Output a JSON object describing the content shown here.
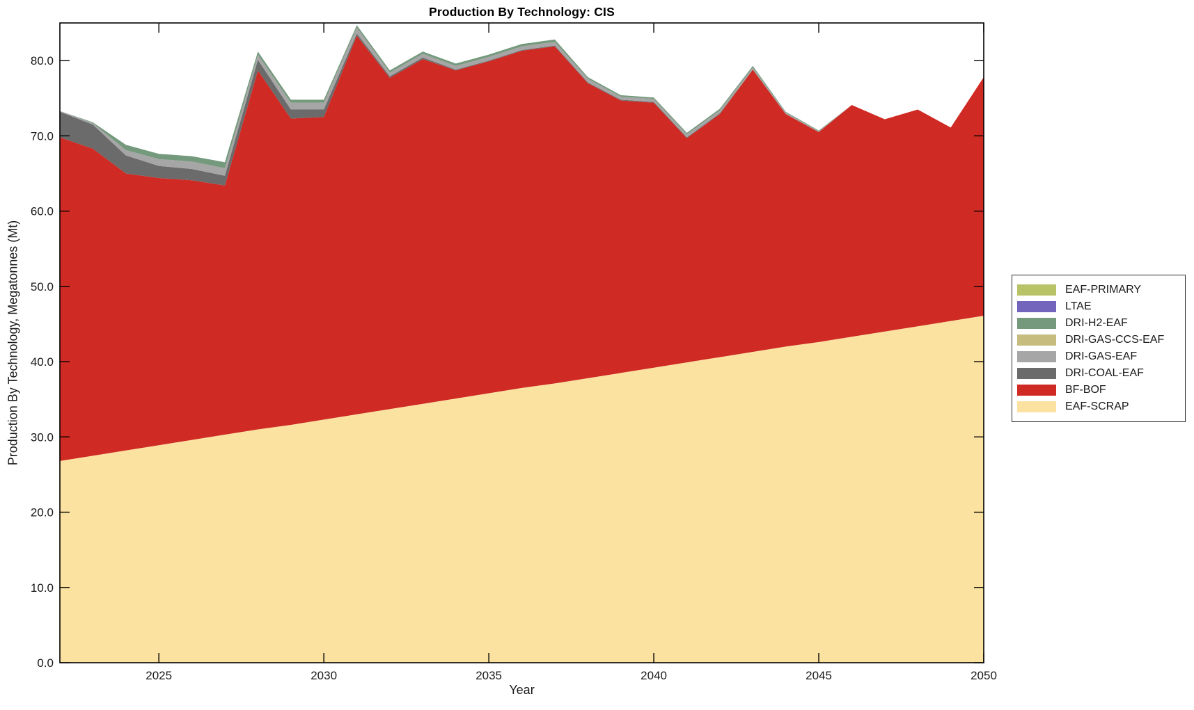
{
  "chart": {
    "title": "Production By Technology: CIS",
    "xlabel": "Year",
    "ylabel": "Production By Technology, Megatonnes (Mt)"
  },
  "chart_data": {
    "type": "area",
    "stacked": true,
    "title": "Production By Technology: CIS",
    "xlabel": "Year",
    "ylabel": "Production By Technology, Megatonnes (Mt)",
    "x": [
      2022,
      2023,
      2024,
      2025,
      2026,
      2027,
      2028,
      2029,
      2030,
      2031,
      2032,
      2033,
      2034,
      2035,
      2036,
      2037,
      2038,
      2039,
      2040,
      2041,
      2042,
      2043,
      2044,
      2045,
      2046,
      2047,
      2048,
      2049,
      2050
    ],
    "series": [
      {
        "name": "EAF-SCRAP",
        "color": "#fce2a1",
        "values": [
          26.8,
          27.5,
          28.2,
          28.9,
          29.6,
          30.3,
          31.0,
          31.6,
          32.3,
          33.0,
          33.7,
          34.4,
          35.1,
          35.8,
          36.5,
          37.1,
          37.8,
          38.5,
          39.2,
          39.9,
          40.6,
          41.3,
          42.0,
          42.6,
          43.3,
          44.0,
          44.7,
          45.4,
          46.1
        ]
      },
      {
        "name": "BF-BOF",
        "color": "#cf2a24",
        "values": [
          43.0,
          40.8,
          36.8,
          35.5,
          34.5,
          33.1,
          47.7,
          40.7,
          40.2,
          50.3,
          44.0,
          45.8,
          43.6,
          44.1,
          44.8,
          44.8,
          39.2,
          36.2,
          35.2,
          29.8,
          32.3,
          37.5,
          30.9,
          27.9,
          30.8,
          28.2,
          28.8,
          25.7,
          31.7
        ]
      },
      {
        "name": "DRI-COAL-EAF",
        "color": "#6b6b6b",
        "values": [
          3.4,
          3.2,
          2.4,
          1.6,
          1.5,
          1.3,
          1.4,
          1.2,
          1.0,
          0.3,
          0.2,
          0.2,
          0.1,
          0.1,
          0.1,
          0.1,
          0.1,
          0.1,
          0.1,
          0.1,
          0.1,
          0.0,
          0.0,
          0.0,
          0.0,
          0.0,
          0.0,
          0.0,
          0.0
        ]
      },
      {
        "name": "DRI-GAS-EAF",
        "color": "#a6a6a6",
        "values": [
          0.1,
          0.2,
          0.7,
          0.9,
          1.0,
          1.0,
          0.7,
          0.9,
          0.9,
          0.8,
          0.5,
          0.5,
          0.5,
          0.5,
          0.5,
          0.5,
          0.5,
          0.4,
          0.4,
          0.4,
          0.4,
          0.3,
          0.2,
          0.1,
          0.0,
          0.0,
          0.0,
          0.0,
          0.0
        ]
      },
      {
        "name": "DRI-GAS-CCS-EAF",
        "color": "#c6bc7d",
        "values": [
          0,
          0,
          0,
          0,
          0,
          0,
          0,
          0,
          0,
          0,
          0,
          0,
          0,
          0,
          0,
          0,
          0,
          0,
          0,
          0,
          0,
          0,
          0,
          0,
          0,
          0,
          0,
          0,
          0
        ]
      },
      {
        "name": "DRI-H2-EAF",
        "color": "#74997c",
        "values": [
          0.0,
          0.1,
          0.7,
          0.7,
          0.7,
          0.8,
          0.4,
          0.4,
          0.4,
          0.3,
          0.3,
          0.3,
          0.3,
          0.3,
          0.3,
          0.3,
          0.2,
          0.2,
          0.2,
          0.2,
          0.2,
          0.2,
          0.1,
          0.1,
          0.0,
          0.0,
          0.0,
          0.0,
          0.0
        ]
      },
      {
        "name": "LTAE",
        "color": "#7265bb",
        "values": [
          0,
          0,
          0,
          0,
          0,
          0,
          0,
          0,
          0,
          0,
          0,
          0,
          0,
          0,
          0,
          0,
          0,
          0,
          0,
          0,
          0,
          0,
          0,
          0,
          0,
          0,
          0,
          0,
          0
        ]
      },
      {
        "name": "EAF-PRIMARY",
        "color": "#b8c266",
        "values": [
          0,
          0,
          0,
          0,
          0,
          0,
          0,
          0,
          0,
          0,
          0,
          0,
          0,
          0,
          0,
          0,
          0,
          0,
          0,
          0,
          0,
          0,
          0,
          0,
          0,
          0,
          0,
          0,
          0
        ]
      }
    ],
    "xlim": [
      2022,
      2050
    ],
    "ylim": [
      0,
      85
    ],
    "xticks": [
      2025,
      2030,
      2035,
      2040,
      2045,
      2050
    ],
    "xtick_labels": [
      "2025",
      "2030",
      "2035",
      "2040",
      "2045",
      "2050"
    ],
    "yticks": [
      0,
      10,
      20,
      30,
      40,
      50,
      60,
      70,
      80
    ],
    "ytick_labels": [
      "0.0",
      "10.0",
      "20.0",
      "30.0",
      "40.0",
      "50.0",
      "60.0",
      "70.0",
      "80.0"
    ],
    "grid": false,
    "legend_position": "right-outside",
    "legend_entries_top_to_bottom": [
      "EAF-PRIMARY",
      "LTAE",
      "DRI-H2-EAF",
      "DRI-GAS-CCS-EAF",
      "DRI-GAS-EAF",
      "DRI-COAL-EAF",
      "BF-BOF",
      "EAF-SCRAP"
    ],
    "axis_color": "#000000",
    "background": "#ffffff"
  }
}
